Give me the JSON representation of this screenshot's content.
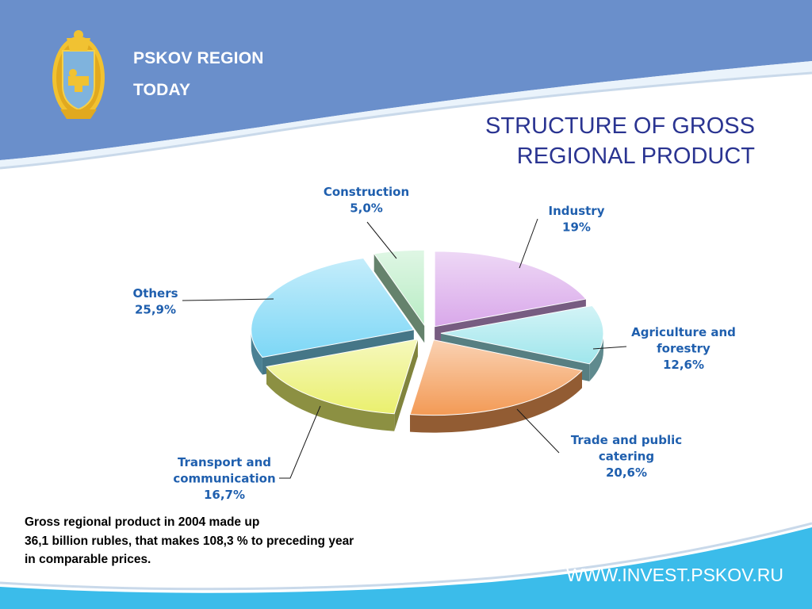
{
  "header": {
    "region_line1": "PSKOV REGION",
    "region_line2": "TODAY",
    "emblem_icon": "pskov-coat-of-arms-icon",
    "background_color": "#6a8fcb"
  },
  "title": {
    "line1": "STRUCTURE OF GROSS",
    "line2": "REGIONAL PRODUCT",
    "color": "#2a3491"
  },
  "chart_data": {
    "type": "pie",
    "style": "3d-exploded",
    "title": "STRUCTURE OF GROSS REGIONAL PRODUCT",
    "unit": "%",
    "slices": [
      {
        "name": "Industry",
        "value": 19,
        "label": "19%",
        "color": "#d9a8ea"
      },
      {
        "name": "Agriculture and forestry",
        "value": 12.6,
        "label": "12,6%",
        "color": "#9fe6ec"
      },
      {
        "name": "Trade and public catering",
        "value": 20.6,
        "label": "20,6%",
        "color": "#f39a55"
      },
      {
        "name": "Transport and communication",
        "value": 16.7,
        "label": "16,7%",
        "color": "#eaf06e"
      },
      {
        "name": "Others",
        "value": 25.9,
        "label": "25,9%",
        "color": "#7dd7f6"
      },
      {
        "name": "Construction",
        "value": 5.0,
        "label": "5,0%",
        "color": "#b8ecc4"
      }
    ],
    "labels": {
      "Industry": [
        "Industry",
        "19%"
      ],
      "Agriculture and forestry": [
        "Agriculture and",
        "forestry",
        "12,6%"
      ],
      "Trade and public catering": [
        "Trade and public",
        "catering",
        "20,6%"
      ],
      "Transport and communication": [
        "Transport and",
        "communication",
        "16,7%"
      ],
      "Others": [
        "Others",
        "25,9%"
      ],
      "Construction": [
        "Construction",
        "5,0%"
      ]
    },
    "label_color": "#1f5fae"
  },
  "note": {
    "line1": "Gross regional product in 2004 made up",
    "line2": "36,1 billion rubles, that makes 108,3 % to preceding year",
    "line3": "in comparable prices."
  },
  "footer": {
    "website": "WWW.INVEST.PSKOV.RU",
    "background_color": "#3bbcea"
  }
}
